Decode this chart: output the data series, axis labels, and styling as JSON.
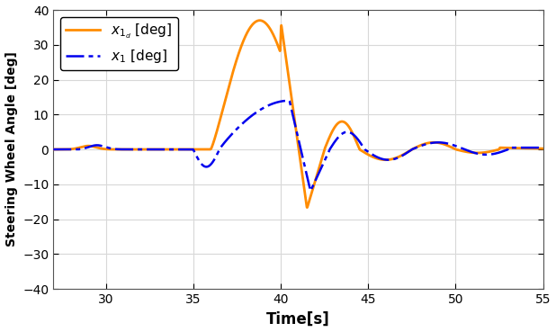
{
  "xlabel": "Time[s]",
  "ylabel": "Steering Wheel Angle [deg]",
  "xlim": [
    27,
    55
  ],
  "ylim": [
    -40,
    40
  ],
  "xticks": [
    30,
    35,
    40,
    45,
    50,
    55
  ],
  "yticks": [
    -40,
    -30,
    -20,
    -10,
    0,
    10,
    20,
    30,
    40
  ],
  "legend1": "$x_{1_d}$ [deg]",
  "legend2": "$x_1$ [deg]",
  "line1_color": "#FF8C00",
  "line2_color": "#0000EE",
  "background_color": "#ffffff",
  "grid_color": "#d8d8d8"
}
